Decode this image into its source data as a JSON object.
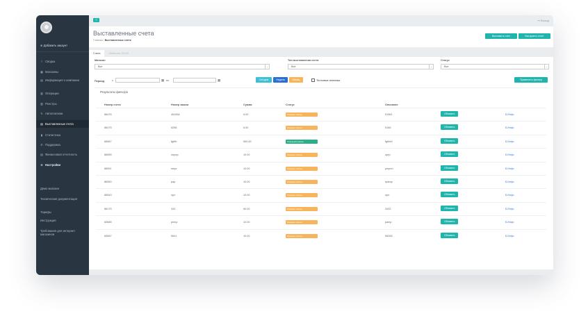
{
  "colors": {
    "accent": "#1fb5ac",
    "sidebar": "#2a3542",
    "status_waiting": "#f7b45b",
    "status_paid": "#27b08a",
    "link": "#3a7bd5"
  },
  "sidebar": {
    "add_account": "Добавить аккаунт",
    "items": [
      {
        "label": "Сводка",
        "icon": "chart-line-icon"
      },
      {
        "label": "Магазины",
        "icon": "grid-icon"
      },
      {
        "label": "Информация о компании",
        "icon": "document-icon"
      },
      {
        "label": "Операции",
        "icon": "list-icon"
      },
      {
        "label": "Реестры",
        "icon": "list-icon"
      },
      {
        "label": "Автоплатежи",
        "icon": "refresh-icon"
      },
      {
        "label": "Выставленные счета",
        "icon": "document-icon"
      },
      {
        "label": "Статистика",
        "icon": "bar-chart-icon"
      },
      {
        "label": "Поддержка",
        "icon": "phone-icon"
      },
      {
        "label": "Финансовая отчетность",
        "icon": "document-icon"
      },
      {
        "label": "Настройки",
        "icon": "gear-icon"
      }
    ],
    "links": [
      "Демо магазин",
      "Техническая документация",
      "Тарифы",
      "Инструкция",
      "Требования для интернет магазинов"
    ]
  },
  "topbar": {
    "menu_icon": "≡",
    "logout": "Выход"
  },
  "header": {
    "title": "Выставленные счета",
    "crumb_home": "Главная",
    "crumb_current": "Выставленные счета",
    "btn_issue": "Выставить счет",
    "btn_export": "Выгрузить отчет"
  },
  "tabs": [
    "Счета",
    "Шаблоны SN-60"
  ],
  "filters": {
    "shop_label": "Магазин",
    "shop_value": "Все",
    "type_label": "Тип выставления счета",
    "type_value": "Все",
    "status_label": "Статус",
    "status_value": "Все",
    "period_label": "Период",
    "from": "с",
    "to": "по",
    "today": "Сегодня",
    "week": "Неделя",
    "month": "Месяц",
    "test_payments": "Тестовые платежи",
    "apply": "Применить фильтр"
  },
  "results": {
    "title": "Результаты фильтра",
    "columns": [
      "Номер счета",
      "Номер заказа",
      "Сумма",
      "Статус",
      "Описание"
    ],
    "refresh_label": "Обновить",
    "info_label": "$ Инфо",
    "rows": [
      {
        "invoice": "86476",
        "order": "451654",
        "sum": "5.00",
        "status": "Ожидает оплаты",
        "status_type": "waiting",
        "desc": "51561"
      },
      {
        "invoice": "86475",
        "order": "5256",
        "sum": "5.00",
        "status": "Ожидает оплаты",
        "status_type": "waiting",
        "desc": "5165"
      },
      {
        "invoice": "85687",
        "order": "fgbfb",
        "sum": "500.00",
        "status": "Успешный платеж",
        "status_type": "paid",
        "desc": "fgbhhf"
      },
      {
        "invoice": "86555",
        "order": "onpop",
        "sum": "10.00",
        "status": "Ожидает оплаты",
        "status_type": "waiting",
        "desc": "oprp"
      },
      {
        "invoice": "86551",
        "order": "mnpr",
        "sum": "10.00",
        "status": "Ожидает оплаты",
        "status_type": "waiting",
        "desc": "pmpnn"
      },
      {
        "invoice": "86550",
        "order": "pap",
        "sum": "10.00",
        "status": "Ожидает оплаты",
        "status_type": "waiting",
        "desc": "rpamp"
      },
      {
        "invoice": "86543",
        "order": "npn",
        "sum": "10.00",
        "status": "Ожидает оплаты",
        "status_type": "waiting",
        "desc": "npn"
      },
      {
        "invoice": "86175",
        "order": "343",
        "sum": "50.00",
        "status": "Ожидает оплаты",
        "status_type": "waiting",
        "desc": "3432"
      },
      {
        "invoice": "83685",
        "order": "pmnp",
        "sum": "10.00",
        "status": "Ожидает оплаты",
        "status_type": "waiting",
        "desc": "pamp"
      },
      {
        "invoice": "83687",
        "order": "5641",
        "sum": "10.00",
        "status": "Ожидает оплаты",
        "status_type": "waiting",
        "desc": "56265"
      }
    ]
  }
}
